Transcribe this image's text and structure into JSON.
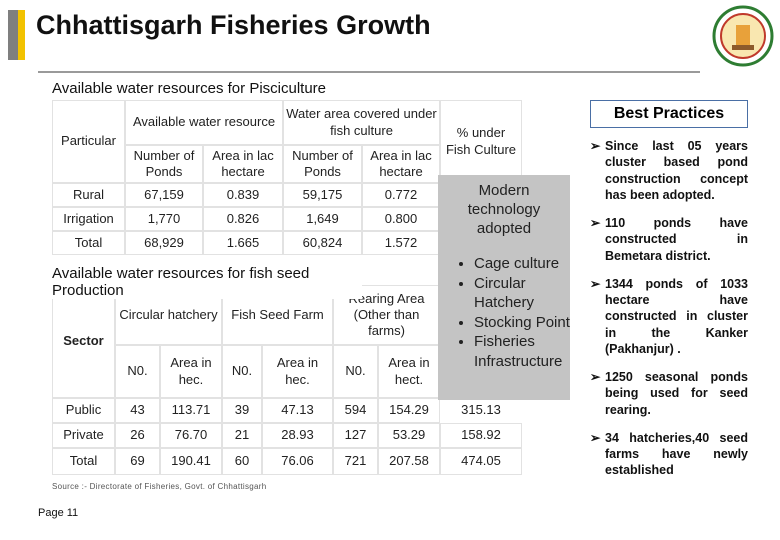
{
  "title": "Chhattisgarh Fisheries Growth",
  "section1": {
    "title": "Available water resources for Pisciculture",
    "table": {
      "header": {
        "particular": "Particular",
        "groups": [
          "Available water resource",
          "Water area covered under fish culture"
        ],
        "percent": "% under Fish Culture"
      },
      "subheaders": [
        "Number of Ponds",
        "Area in lac hectare",
        "Number of Ponds",
        "Area in lac hectare"
      ],
      "rows": [
        [
          "Rural",
          "67,159",
          "0.839",
          "59,175",
          "0.772"
        ],
        [
          "Irrigation",
          "1,770",
          "0.826",
          "1,649",
          "0.800"
        ],
        [
          "Total",
          "68,929",
          "1.665",
          "60,824",
          "1.572"
        ]
      ]
    }
  },
  "section2": {
    "title": "Available water resources for fish seed Production",
    "table": {
      "header": {
        "sector": "Sector",
        "groups": [
          "Circular hatchery",
          "Fish Seed Farm",
          "Rearing Area (Other than farms)"
        ]
      },
      "subheaders": [
        "N0.",
        "Area in hec.",
        "N0.",
        "Area in hec.",
        "N0.",
        "Area in hect."
      ],
      "rows": [
        [
          "Public",
          "43",
          "113.71",
          "39",
          "47.13",
          "594",
          "154.29",
          "315.13"
        ],
        [
          "Private",
          "26",
          "76.70",
          "21",
          "28.93",
          "127",
          "53.29",
          "158.92"
        ],
        [
          "Total",
          "69",
          "190.41",
          "60",
          "76.06",
          "721",
          "207.58",
          "474.05"
        ]
      ]
    }
  },
  "source": "Source :- Directorate of Fisheries, Govt. of Chhattisgarh",
  "page": "Page 11",
  "modern": {
    "title": "Modern technology adopted",
    "items": [
      "Cage culture",
      "Circular Hatchery",
      "Stocking Point",
      "Fisheries Infrastructure"
    ]
  },
  "best_practices": {
    "title": "Best Practices",
    "items": [
      "Since last 05 years cluster based pond construction concept has been adopted.",
      "110 ponds have constructed in Bemetara district.",
      "1344 ponds of 1033 hectare have constructed in cluster in the Kanker (Pakhanjur) .",
      "1250 seasonal ponds being used for seed rearing.",
      "34 hatcheries,40 seed farms have newly established"
    ]
  }
}
